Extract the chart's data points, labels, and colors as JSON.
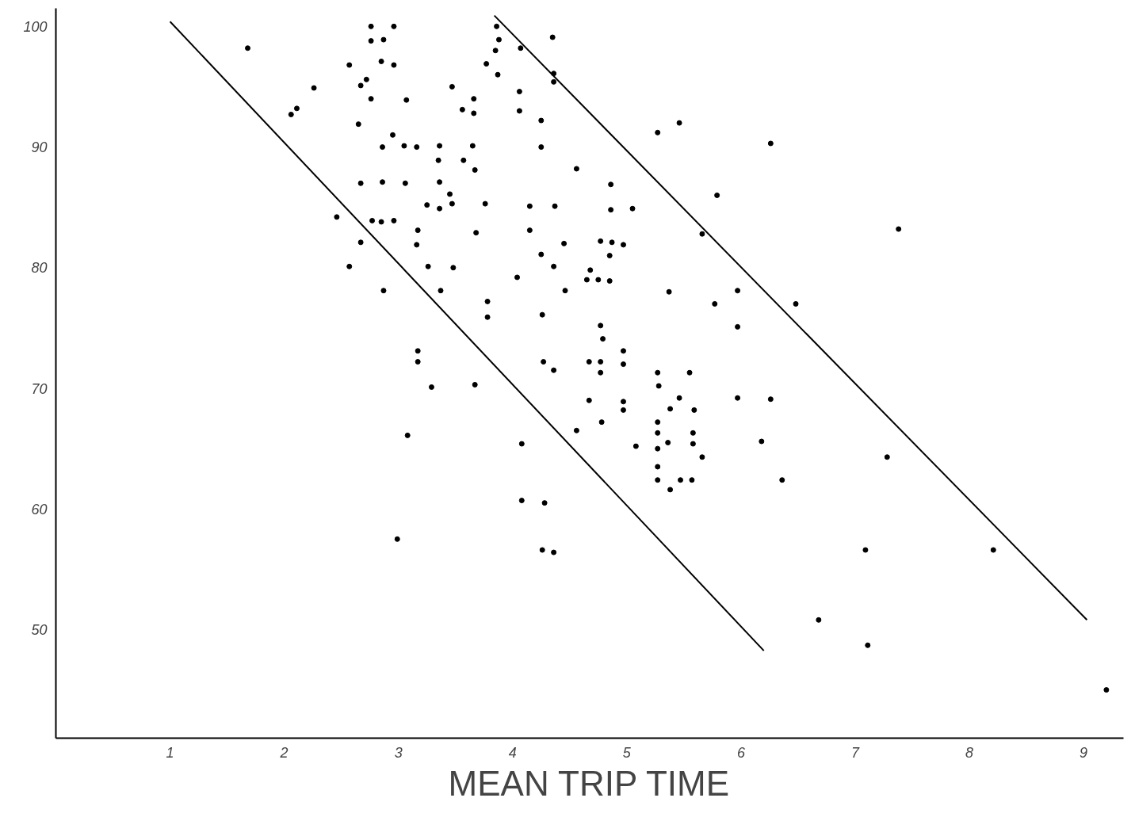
{
  "chart_data": {
    "type": "scatter",
    "xlabel": "MEAN TRIP TIME",
    "xlim": [
      0,
      9.35
    ],
    "ylim": [
      41,
      101.5
    ],
    "xticks": [
      1,
      2,
      3,
      4,
      5,
      6,
      7,
      8,
      9
    ],
    "yticks": [
      50,
      60,
      70,
      80,
      90,
      100
    ],
    "series": [
      {
        "marker": "circle",
        "color": "#000000",
        "x": [
          1.68,
          2.76,
          2.96,
          2.76,
          2.87,
          2.57,
          2.85,
          2.96,
          2.72,
          2.67,
          2.26,
          2.76,
          3.07,
          2.11,
          2.06,
          2.65,
          2.95,
          2.86,
          3.05,
          3.16,
          3.36,
          3.65,
          3.35,
          3.57,
          3.67,
          2.67,
          2.86,
          3.06,
          3.36,
          3.45,
          3.25,
          3.36,
          3.47,
          3.76,
          2.46,
          2.77,
          2.85,
          2.96,
          3.17,
          3.16,
          3.68,
          2.67,
          2.57,
          3.26,
          3.48,
          2.87,
          3.37,
          3.78,
          3.78,
          4.04,
          3.17,
          3.17,
          3.86,
          3.88,
          3.85,
          3.77,
          3.87,
          3.47,
          3.66,
          3.56,
          3.66,
          4.06,
          4.06,
          4.07,
          4.35,
          4.36,
          4.36,
          4.25,
          4.25,
          5.27,
          5.46,
          6.26,
          4.56,
          4.86,
          4.15,
          4.37,
          4.86,
          5.05,
          5.79,
          4.15,
          4.45,
          4.77,
          4.87,
          4.97,
          5.66,
          4.25,
          4.85,
          4.36,
          4.68,
          4.65,
          4.75,
          4.85,
          4.46,
          5.37,
          5.97,
          5.77,
          6.48,
          4.26,
          5.97,
          4.77,
          4.79,
          4.97,
          4.97,
          4.27,
          4.67,
          4.77,
          4.36,
          4.77,
          5.27,
          5.55,
          5.28,
          5.46,
          5.97,
          6.26,
          4.67,
          4.97,
          4.97,
          5.38,
          5.59,
          4.78,
          5.27,
          4.56,
          5.27,
          5.58,
          4.08,
          5.08,
          5.27,
          5.36,
          5.58,
          6.18,
          5.66,
          5.27,
          5.27,
          5.47,
          5.57,
          5.38,
          6.36,
          4.08,
          4.28,
          4.26,
          4.36,
          3.29,
          3.67,
          3.08,
          2.99,
          7.38,
          7.28,
          7.09,
          8.21,
          6.68,
          7.11,
          9.2
        ],
        "values": [
          98.2,
          100.0,
          100.0,
          98.8,
          98.9,
          96.8,
          97.1,
          96.8,
          95.6,
          95.1,
          94.9,
          94.0,
          93.9,
          93.2,
          92.7,
          91.9,
          91.0,
          90.0,
          90.1,
          90.0,
          90.1,
          90.1,
          88.9,
          88.9,
          88.1,
          87.0,
          87.1,
          87.0,
          87.1,
          86.1,
          85.2,
          84.9,
          85.3,
          85.3,
          84.2,
          83.9,
          83.8,
          83.9,
          83.1,
          81.9,
          82.9,
          82.1,
          80.1,
          80.1,
          80.0,
          78.1,
          78.1,
          77.2,
          75.9,
          79.2,
          73.1,
          72.2,
          100.0,
          98.9,
          98.0,
          96.9,
          96.0,
          95.0,
          94.0,
          93.1,
          92.8,
          94.6,
          93.0,
          98.2,
          99.1,
          96.1,
          95.4,
          92.2,
          90.0,
          91.2,
          92.0,
          90.3,
          88.2,
          86.9,
          85.1,
          85.1,
          84.8,
          84.9,
          86.0,
          83.1,
          82.0,
          82.2,
          82.1,
          81.9,
          82.8,
          81.1,
          81.0,
          80.1,
          79.8,
          79.0,
          79.0,
          78.9,
          78.1,
          78.0,
          78.1,
          77.0,
          77.0,
          76.1,
          75.1,
          75.2,
          74.1,
          73.1,
          72.0,
          72.2,
          72.2,
          72.2,
          71.5,
          71.3,
          71.3,
          71.3,
          70.2,
          69.2,
          69.2,
          69.1,
          69.0,
          68.9,
          68.2,
          68.3,
          68.2,
          67.2,
          67.2,
          66.5,
          66.3,
          66.3,
          65.4,
          65.2,
          65.0,
          65.5,
          65.4,
          65.6,
          64.3,
          63.5,
          62.4,
          62.4,
          62.4,
          61.6,
          62.4,
          60.7,
          60.5,
          56.6,
          56.4,
          70.1,
          70.3,
          66.1,
          57.5,
          83.2,
          64.3,
          56.6,
          56.6,
          50.8,
          48.7,
          45.0
        ]
      },
      {
        "type": "line",
        "color": "#000000",
        "x": [
          1.0,
          6.2
        ],
        "values": [
          100.4,
          48.25
        ]
      },
      {
        "type": "line",
        "color": "#000000",
        "x": [
          3.84,
          9.03
        ],
        "values": [
          100.9,
          50.8
        ]
      }
    ]
  }
}
